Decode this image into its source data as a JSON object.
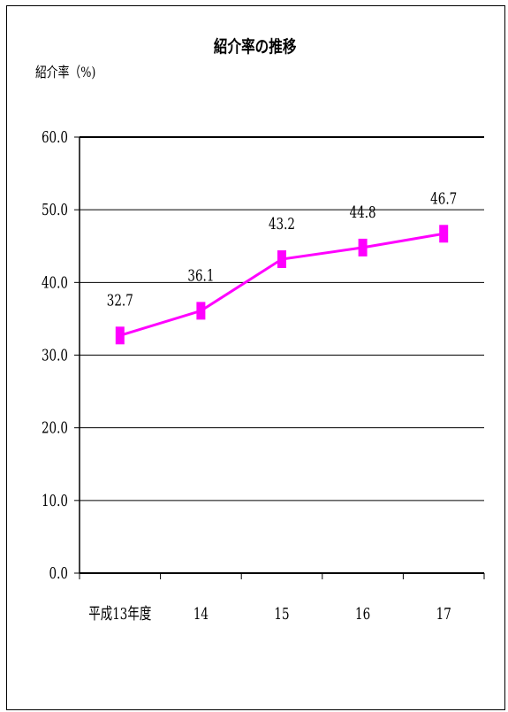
{
  "chart_data": {
    "type": "line",
    "title": "紹介率の推移",
    "ylabel": "紹介率（%)",
    "xlabel": "",
    "categories": [
      "平成13年度",
      "14",
      "15",
      "16",
      "17"
    ],
    "series": [
      {
        "values": [
          32.7,
          36.1,
          43.2,
          44.8,
          46.7
        ]
      }
    ],
    "data_labels": [
      "32.7",
      "36.1",
      "43.2",
      "44.8",
      "46.7"
    ],
    "ylim": [
      0,
      60
    ],
    "yticks": [
      "0.0",
      "10.0",
      "20.0",
      "30.0",
      "40.0",
      "50.0",
      "60.0"
    ],
    "grid": true,
    "legend": "none",
    "line_color": "#ff00ff"
  }
}
